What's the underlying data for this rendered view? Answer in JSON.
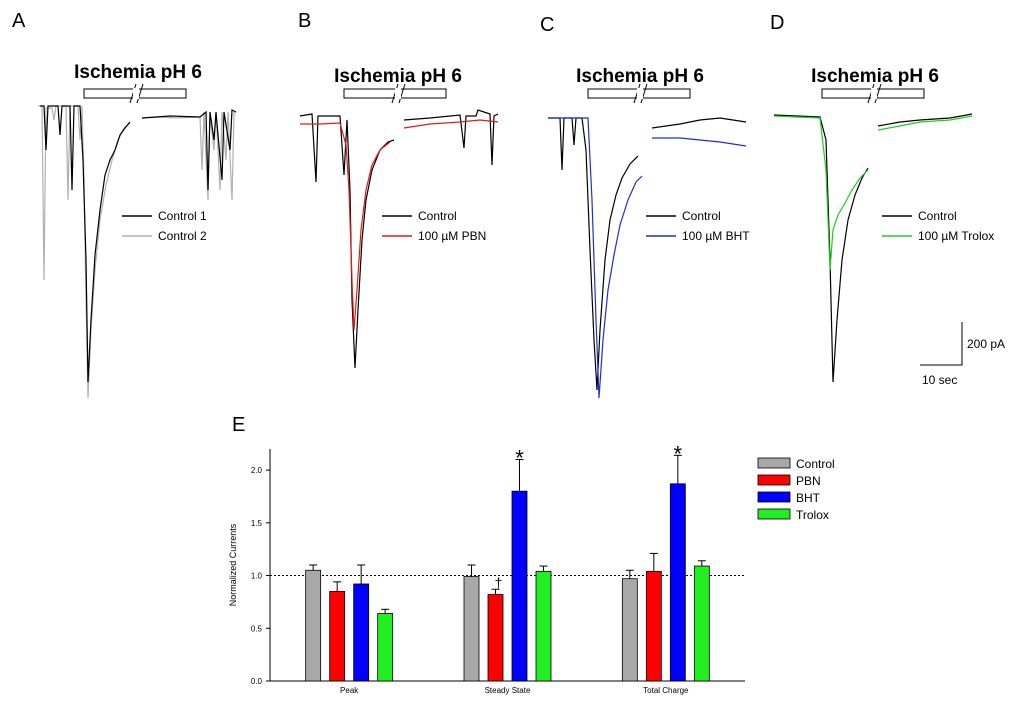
{
  "panels": [
    {
      "letter": "A",
      "title": "Ischemia pH 6",
      "legend": [
        {
          "label": "Control 1",
          "color": "#000000"
        },
        {
          "label": "Control 2",
          "color": "#b0b0b0"
        }
      ]
    },
    {
      "letter": "B",
      "title": "Ischemia pH 6",
      "legend": [
        {
          "label": "Control",
          "color": "#000000"
        },
        {
          "label": "100 µM PBN",
          "color": "#e31a1c"
        }
      ]
    },
    {
      "letter": "C",
      "title": "Ischemia pH 6",
      "legend": [
        {
          "label": "Control",
          "color": "#000000"
        },
        {
          "label": "100 µM BHT",
          "color": "#1f2fcf"
        }
      ]
    },
    {
      "letter": "D",
      "title": "Ischemia pH 6",
      "legend": [
        {
          "label": "Control",
          "color": "#000000"
        },
        {
          "label": "100 µM Trolox",
          "color": "#22cc22"
        }
      ]
    }
  ],
  "scale_bar": {
    "current": "200 pA",
    "time": "10 sec"
  },
  "chart_data": {
    "panel_label": "E",
    "type": "bar",
    "categories": [
      "Peak",
      "Steady State",
      "Total Charge"
    ],
    "series": [
      {
        "name": "Control",
        "color": "#a8a8a8",
        "values": [
          1.05,
          0.99,
          0.97
        ],
        "errors": [
          0.05,
          0.11,
          0.08
        ]
      },
      {
        "name": "PBN",
        "color": "#ff0000",
        "values": [
          0.85,
          0.82,
          1.04
        ],
        "errors": [
          0.09,
          0.05,
          0.17
        ]
      },
      {
        "name": "BHT",
        "color": "#0000ff",
        "values": [
          0.92,
          1.8,
          1.87
        ],
        "errors": [
          0.18,
          0.3,
          0.27
        ]
      },
      {
        "name": "Trolox",
        "color": "#22ee22",
        "values": [
          0.64,
          1.04,
          1.09
        ],
        "errors": [
          0.04,
          0.05,
          0.05
        ]
      }
    ],
    "annotations": [
      {
        "category": "Steady State",
        "series": "PBN",
        "text": "†"
      },
      {
        "category": "Steady State",
        "series": "BHT",
        "text": "*"
      },
      {
        "category": "Total Charge",
        "series": "BHT",
        "text": "*"
      }
    ],
    "xlabel": "",
    "ylabel": "Normalized Currents",
    "ylim": [
      0,
      2.2
    ],
    "yticks": [
      "0.0",
      "0.5",
      "1.0",
      "1.5",
      "2.0"
    ],
    "reference_line": 1.0,
    "legend_position": "top-right"
  }
}
